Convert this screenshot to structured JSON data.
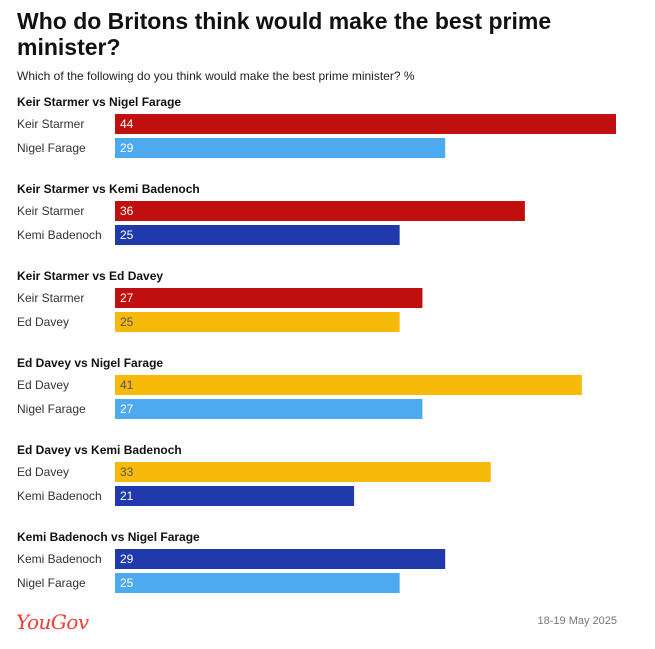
{
  "header": {
    "title": "Who do Britons think would make the best prime minister?",
    "subtitle": "Which of the following do you think would make the best prime minister? %"
  },
  "footer": {
    "brand": "YouGov",
    "date": "18-19 May 2025"
  },
  "colors": {
    "Keir Starmer": "#c00f0f",
    "Nigel Farage": "#4eaaef",
    "Kemi Badenoch": "#2039ab",
    "Ed Davey": "#f7b90a"
  },
  "chart_data": {
    "type": "bar",
    "orientation": "horizontal",
    "xlim": [
      0,
      44
    ],
    "groups": [
      {
        "title": "Keir Starmer vs Nigel Farage",
        "bars": [
          {
            "name": "Keir Starmer",
            "value": 44
          },
          {
            "name": "Nigel Farage",
            "value": 29
          }
        ]
      },
      {
        "title": "Keir Starmer vs Kemi Badenoch",
        "bars": [
          {
            "name": "Keir Starmer",
            "value": 36
          },
          {
            "name": "Kemi Badenoch",
            "value": 25
          }
        ]
      },
      {
        "title": "Keir Starmer vs Ed Davey",
        "bars": [
          {
            "name": "Keir Starmer",
            "value": 27
          },
          {
            "name": "Ed Davey",
            "value": 25
          }
        ]
      },
      {
        "title": "Ed Davey vs Nigel Farage",
        "bars": [
          {
            "name": "Ed Davey",
            "value": 41
          },
          {
            "name": "Nigel Farage",
            "value": 27
          }
        ]
      },
      {
        "title": "Ed Davey vs Kemi Badenoch",
        "bars": [
          {
            "name": "Ed Davey",
            "value": 33
          },
          {
            "name": "Kemi Badenoch",
            "value": 21
          }
        ]
      },
      {
        "title": "Kemi Badenoch vs Nigel Farage",
        "bars": [
          {
            "name": "Kemi Badenoch",
            "value": 29
          },
          {
            "name": "Nigel Farage",
            "value": 25
          }
        ]
      }
    ]
  }
}
